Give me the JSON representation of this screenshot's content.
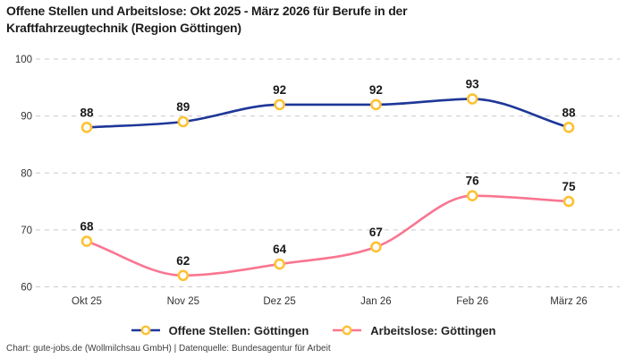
{
  "title": "Offene Stellen und Arbeitslose: Okt 2025 - März 2026 für Berufe in der Kraftfahrzeugtechnik (Region Göttingen)",
  "footer": "Chart: gute-jobs.de (Wollmilchsau GmbH) | Datenquelle: Bundesagentur für Arbeit",
  "chart_data": {
    "type": "line",
    "categories": [
      "Okt 25",
      "Nov 25",
      "Dez 25",
      "Jan 26",
      "Feb 26",
      "März 26"
    ],
    "series": [
      {
        "name": "Offene Stellen: Göttingen",
        "values": [
          88,
          89,
          92,
          92,
          93,
          88
        ],
        "color": "#1e3799"
      },
      {
        "name": "Arbeitslose: Göttingen",
        "values": [
          68,
          62,
          64,
          67,
          76,
          75
        ],
        "color": "#f97690"
      }
    ],
    "marker_color": "#fdc233",
    "marker_fill": "#ffffff",
    "grid_color": "#c9c9c9",
    "ylim": [
      60,
      100
    ],
    "yticks": [
      60,
      70,
      80,
      90,
      100
    ],
    "grid": "dashed-horizontal",
    "legend_position": "bottom",
    "data_labels": true
  }
}
